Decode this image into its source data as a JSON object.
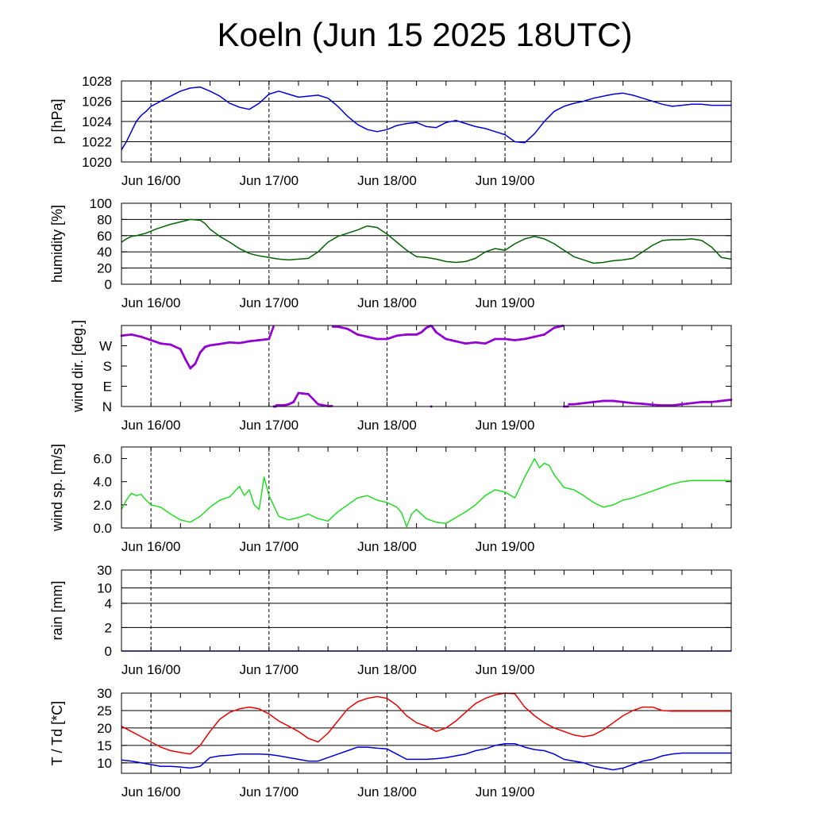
{
  "title": "Koeln (Jun 15 2025 18UTC)",
  "time_axis": {
    "start": "Jun 15 18UTC",
    "end": "Jun 19 22UTC",
    "tick_labels": [
      "Jun 16/00",
      "Jun 17/00",
      "Jun 18/00",
      "Jun 19/00"
    ]
  },
  "colors": {
    "pressure": "#0000dd",
    "humidity": "#006400",
    "wind_direction": "#9400d3",
    "wind_speed": "#22dd22",
    "rain": "#0000dd",
    "temperature": "#ee0000",
    "dewpoint": "#0000dd"
  },
  "chart_data": [
    {
      "type": "line",
      "ylabel": "p [hPa]",
      "ylim": [
        1020,
        1028
      ],
      "yticks": [
        "1020",
        "1022",
        "1024",
        "1026",
        "1028"
      ],
      "grid": true,
      "series": [
        {
          "color": "#0000dd",
          "x_hours": [
            0,
            1,
            2,
            3,
            4,
            5,
            6,
            8,
            10,
            12,
            14,
            16,
            18,
            20,
            22,
            24,
            26,
            28,
            30,
            32,
            34,
            36,
            38,
            40,
            42,
            44,
            46,
            48,
            50,
            52,
            54,
            56,
            58,
            60,
            62,
            64,
            66,
            68,
            70,
            72,
            74,
            76,
            78,
            80,
            82,
            84,
            86,
            88,
            90,
            92,
            94,
            96,
            98,
            100,
            102,
            104,
            106,
            108,
            110,
            112,
            114,
            116,
            118,
            120,
            122,
            124
          ],
          "values": [
            1021.2,
            1022.0,
            1023.0,
            1024.0,
            1024.6,
            1025.0,
            1025.5,
            1026.0,
            1026.5,
            1027.0,
            1027.3,
            1027.4,
            1027.0,
            1026.5,
            1025.8,
            1025.4,
            1025.2,
            1025.8,
            1026.7,
            1027.0,
            1026.7,
            1026.4,
            1026.5,
            1026.6,
            1026.3,
            1025.5,
            1024.5,
            1023.7,
            1023.2,
            1023.0,
            1023.2,
            1023.6,
            1023.8,
            1023.9,
            1023.5,
            1023.4,
            1023.9,
            1024.1,
            1023.8,
            1023.5,
            1023.3,
            1023.0,
            1022.7,
            1022.0,
            1021.9,
            1022.8,
            1024.0,
            1025.0,
            1025.5,
            1025.8,
            1026.0,
            1026.3,
            1026.5,
            1026.7,
            1026.8,
            1026.6,
            1026.3,
            1026.0,
            1025.7,
            1025.5,
            1025.6,
            1025.7,
            1025.7,
            1025.6,
            1025.6,
            1025.6
          ]
        }
      ]
    },
    {
      "type": "line",
      "ylabel": "humidity [%]",
      "ylim": [
        0,
        100
      ],
      "yticks": [
        "0",
        "20",
        "40",
        "60",
        "80",
        "100"
      ],
      "grid": true,
      "series": [
        {
          "color": "#006400",
          "x_hours": [
            0,
            1,
            2,
            3,
            5,
            7,
            10,
            12,
            14,
            16,
            17,
            18,
            20,
            22,
            24,
            26,
            28,
            30,
            32,
            34,
            36,
            38,
            40,
            42,
            44,
            46,
            48,
            50,
            52,
            54,
            56,
            58,
            60,
            62,
            64,
            66,
            68,
            70,
            72,
            74,
            76,
            78,
            80,
            82,
            84,
            86,
            88,
            90,
            92,
            94,
            96,
            98,
            100,
            102,
            104,
            106,
            108,
            110,
            112,
            114,
            116,
            118,
            120,
            122,
            124
          ],
          "values": [
            52,
            56,
            59,
            60,
            63,
            68,
            74,
            77,
            80,
            79,
            75,
            68,
            59,
            52,
            44,
            38,
            35,
            33,
            31,
            30,
            31,
            32,
            40,
            52,
            59,
            63,
            67,
            72,
            70,
            62,
            52,
            42,
            34,
            33,
            31,
            28,
            27,
            28,
            32,
            40,
            44,
            42,
            50,
            56,
            59,
            56,
            50,
            42,
            34,
            30,
            26,
            27,
            29,
            30,
            32,
            40,
            48,
            54,
            55,
            55,
            56,
            54,
            46,
            33,
            31
          ]
        }
      ]
    },
    {
      "type": "scatter",
      "ylabel": "wind dir. [deg.]",
      "ylim": [
        0,
        360
      ],
      "yticks": [
        "N",
        "E",
        "S",
        "W"
      ],
      "grid": false,
      "series": [
        {
          "color": "#9400d3",
          "x_hours": [
            0,
            2,
            4,
            6,
            8,
            10,
            12,
            13,
            14,
            15,
            16,
            17,
            18,
            20,
            22,
            24,
            26,
            28,
            30,
            31,
            32,
            33,
            34,
            35,
            36,
            38,
            40,
            42,
            44,
            46,
            48,
            50,
            52,
            54,
            56,
            58,
            60,
            61,
            62,
            63,
            64,
            66,
            68,
            70,
            72,
            74,
            76,
            78,
            80,
            82,
            84,
            86,
            88,
            90,
            92,
            94,
            96,
            98,
            100,
            102,
            104,
            106,
            108,
            110,
            112,
            114,
            116,
            118,
            120,
            122,
            124
          ],
          "values": [
            315,
            320,
            310,
            295,
            280,
            275,
            255,
            210,
            170,
            190,
            240,
            265,
            272,
            278,
            285,
            282,
            290,
            295,
            300,
            360,
            5,
            5,
            10,
            20,
            60,
            55,
            10,
            2,
            355,
            345,
            320,
            310,
            300,
            300,
            315,
            320,
            320,
            330,
            350,
            360,
            330,
            300,
            290,
            280,
            285,
            280,
            300,
            300,
            295,
            300,
            310,
            320,
            350,
            360,
            10,
            15,
            20,
            25,
            25,
            20,
            15,
            12,
            8,
            5,
            5,
            10,
            15,
            20,
            20,
            25,
            30
          ]
        }
      ]
    },
    {
      "type": "line",
      "ylabel": "wind sp. [m/s]",
      "ylim": [
        0,
        7
      ],
      "yticks": [
        "0.0",
        "2.0",
        "4.0",
        "6.0"
      ],
      "grid": false,
      "series": [
        {
          "color": "#22dd22",
          "x_hours": [
            0,
            1,
            2,
            3,
            4,
            5,
            6,
            8,
            10,
            12,
            14,
            16,
            18,
            20,
            22,
            24,
            25,
            26,
            27,
            28,
            29,
            30,
            32,
            34,
            36,
            38,
            40,
            42,
            44,
            46,
            48,
            50,
            52,
            54,
            56,
            57,
            58,
            59,
            60,
            62,
            64,
            66,
            68,
            70,
            72,
            74,
            76,
            78,
            80,
            82,
            84,
            85,
            86,
            87,
            88,
            90,
            92,
            94,
            96,
            98,
            100,
            102,
            104,
            106,
            108,
            110,
            112,
            114,
            116,
            118,
            120,
            122,
            124
          ],
          "values": [
            1.6,
            2.4,
            3.0,
            2.8,
            2.9,
            2.4,
            2.0,
            1.8,
            1.2,
            0.7,
            0.5,
            1.0,
            1.8,
            2.4,
            2.7,
            3.6,
            2.8,
            3.3,
            2.0,
            1.6,
            4.4,
            2.8,
            1.0,
            0.7,
            0.9,
            1.2,
            0.8,
            0.6,
            1.4,
            2.0,
            2.6,
            2.8,
            2.4,
            2.2,
            1.8,
            1.3,
            0.1,
            1.2,
            1.6,
            0.8,
            0.5,
            0.4,
            0.9,
            1.4,
            2.0,
            2.8,
            3.3,
            3.1,
            2.6,
            4.4,
            6.0,
            5.2,
            5.6,
            5.4,
            4.6,
            3.5,
            3.3,
            2.8,
            2.2,
            1.8,
            2.0,
            2.4,
            2.6,
            2.9,
            3.2,
            3.5,
            3.8,
            4.0,
            4.1,
            4.1,
            4.1,
            4.1,
            4.1
          ]
        }
      ]
    },
    {
      "type": "area",
      "ylabel": "rain [mm]",
      "ylim": [
        0,
        30
      ],
      "yticks": [
        "0",
        "2",
        "4",
        "10",
        "30"
      ],
      "grid": true,
      "series": [
        {
          "color": "#0000dd",
          "x_hours": [
            0,
            124
          ],
          "values": [
            0,
            0
          ]
        }
      ]
    },
    {
      "type": "line",
      "ylabel": "T / Td [*C]",
      "ylim": [
        7,
        30
      ],
      "yticks": [
        "10",
        "15",
        "20",
        "25",
        "30"
      ],
      "grid": true,
      "series": [
        {
          "color": "#ee0000",
          "x_hours": [
            0,
            2,
            4,
            6,
            8,
            10,
            12,
            14,
            16,
            18,
            20,
            22,
            24,
            26,
            28,
            30,
            32,
            34,
            36,
            38,
            40,
            42,
            44,
            46,
            48,
            50,
            52,
            54,
            56,
            58,
            60,
            62,
            64,
            66,
            68,
            70,
            72,
            74,
            76,
            78,
            80,
            82,
            84,
            86,
            88,
            90,
            92,
            94,
            96,
            98,
            100,
            102,
            104,
            106,
            108,
            110,
            112,
            114,
            116,
            118,
            120,
            122,
            124
          ],
          "values": [
            20.5,
            19.0,
            17.5,
            16.0,
            14.5,
            13.5,
            13.0,
            12.5,
            15.0,
            19.0,
            22.5,
            24.5,
            25.5,
            26.0,
            25.5,
            24.0,
            22.0,
            20.5,
            19.0,
            17.0,
            16.0,
            18.5,
            22.0,
            25.5,
            27.5,
            28.5,
            29.0,
            28.5,
            26.5,
            23.5,
            21.5,
            20.5,
            19.0,
            20.0,
            22.0,
            24.5,
            27.0,
            28.5,
            29.5,
            30.0,
            29.8,
            26.0,
            23.5,
            21.5,
            20.0,
            19.0,
            18.0,
            17.5,
            18.0,
            19.5,
            21.5,
            23.5,
            25.0,
            26.0,
            26.0,
            25.0,
            24.8,
            24.8,
            24.8,
            24.8,
            24.8,
            24.8,
            24.8
          ]
        },
        {
          "color": "#0000dd",
          "x_hours": [
            0,
            2,
            4,
            6,
            8,
            10,
            12,
            14,
            16,
            18,
            20,
            22,
            24,
            26,
            28,
            30,
            32,
            34,
            36,
            38,
            40,
            42,
            44,
            46,
            48,
            50,
            52,
            54,
            56,
            58,
            60,
            62,
            64,
            66,
            68,
            70,
            72,
            74,
            76,
            78,
            80,
            82,
            84,
            86,
            88,
            90,
            92,
            94,
            96,
            98,
            100,
            102,
            104,
            106,
            108,
            110,
            112,
            114,
            116,
            118,
            120,
            122,
            124
          ],
          "values": [
            10.8,
            10.5,
            10.0,
            9.5,
            9.0,
            9.0,
            8.8,
            8.5,
            9.0,
            11.5,
            12.0,
            12.2,
            12.5,
            12.5,
            12.5,
            12.4,
            12.0,
            11.5,
            11.0,
            10.5,
            10.5,
            11.5,
            12.5,
            13.5,
            14.5,
            14.5,
            14.2,
            14.0,
            12.5,
            11.0,
            11.0,
            11.0,
            11.2,
            11.5,
            12.0,
            12.5,
            13.5,
            14.0,
            15.0,
            15.5,
            15.5,
            14.5,
            13.8,
            13.5,
            12.5,
            11.0,
            10.5,
            10.0,
            9.0,
            8.5,
            8.0,
            8.5,
            9.5,
            10.5,
            11.0,
            12.0,
            12.5,
            12.8,
            12.8,
            12.8,
            12.8,
            12.8,
            12.8
          ]
        }
      ]
    }
  ]
}
